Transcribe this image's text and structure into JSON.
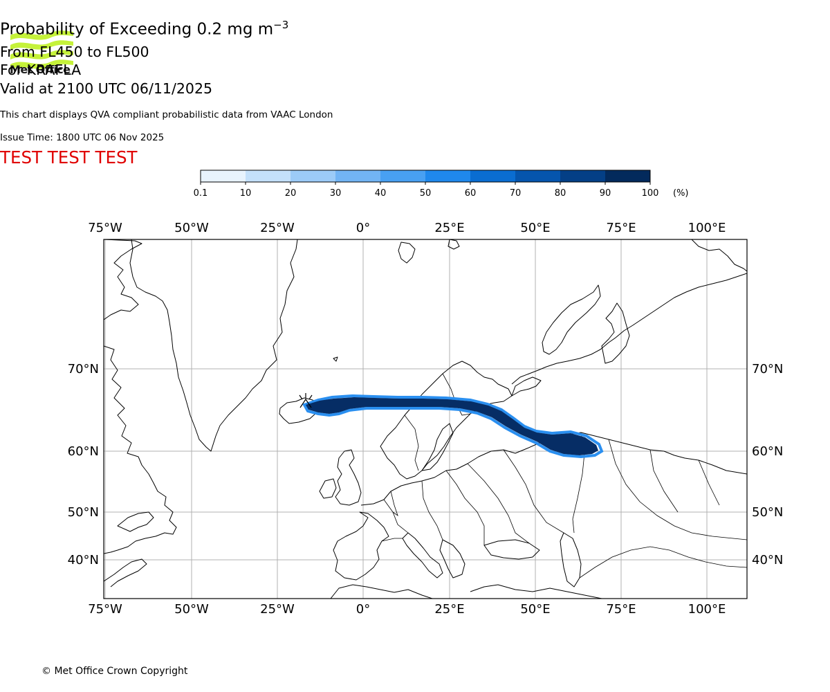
{
  "brand": {
    "name": "Met Office",
    "logo_color": "#c5f23a"
  },
  "header": {
    "title_main": "Probability of Exceeding 0.2 mg m",
    "title_unit_exp": "−3",
    "level_range": "From FL450 to FL500",
    "volcano": "For KRAFLA",
    "valid_time": "Valid at 2100 UTC 06/11/2025",
    "description": "This chart displays QVA compliant probabilistic data from VAAC London",
    "issue_time": "Issue Time: 1800 UTC 06 Nov 2025",
    "test_banner": "TEST TEST TEST",
    "test_color": "#e00000"
  },
  "legend": {
    "ticks": [
      "0.1",
      "10",
      "20",
      "30",
      "40",
      "50",
      "60",
      "70",
      "80",
      "90",
      "100"
    ],
    "unit": "(%)",
    "colors": [
      "#e8f3fd",
      "#c4e0fa",
      "#9ccbf7",
      "#72b4f4",
      "#48a0f2",
      "#1f88ec",
      "#0a6dd1",
      "#0555ad",
      "#043f86",
      "#032a5c"
    ]
  },
  "map": {
    "lon_labels": [
      "75°W",
      "50°W",
      "25°W",
      "0°",
      "25°E",
      "50°E",
      "75°E",
      "100°E"
    ],
    "lat_labels": [
      "70°N",
      "60°N",
      "50°N",
      "40°N"
    ],
    "plume_color": "#062d65",
    "plume_edge_color": "#2a8ff0"
  },
  "footer": {
    "copyright": "© Met Office Crown Copyright"
  }
}
